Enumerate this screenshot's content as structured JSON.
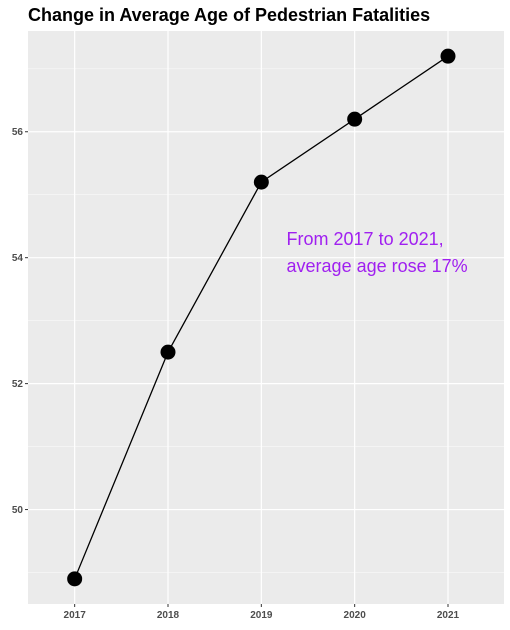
{
  "chart_data": {
    "type": "line",
    "title": "Change in Average Age of Pedestrian Fatalities",
    "xlabel": "",
    "ylabel": "",
    "x": [
      2017,
      2018,
      2019,
      2020,
      2021
    ],
    "x_tick_labels": [
      "2017",
      "2018",
      "2019",
      "2020",
      "2021"
    ],
    "series": [
      {
        "values": [
          48.9,
          52.5,
          55.2,
          56.2,
          57.2
        ]
      }
    ],
    "xlim": [
      2016.5,
      2021.6
    ],
    "ylim": [
      48.5,
      57.6
    ],
    "y_ticks": [
      50,
      52,
      54,
      56
    ],
    "y_tick_labels": [
      "50",
      "52",
      "54",
      "56"
    ],
    "annotation": {
      "lines": [
        "From 2017 to 2021,",
        "average age rose 17%"
      ],
      "x": 2019.27,
      "y": 54.2
    },
    "grid": true,
    "legend": "none",
    "colors": {
      "panel_background": "#ebebeb",
      "grid_major": "#ffffff",
      "line": "#000000",
      "point": "#000000",
      "annotation": "#a020f0",
      "tick_label": "#4d4d4d"
    }
  }
}
